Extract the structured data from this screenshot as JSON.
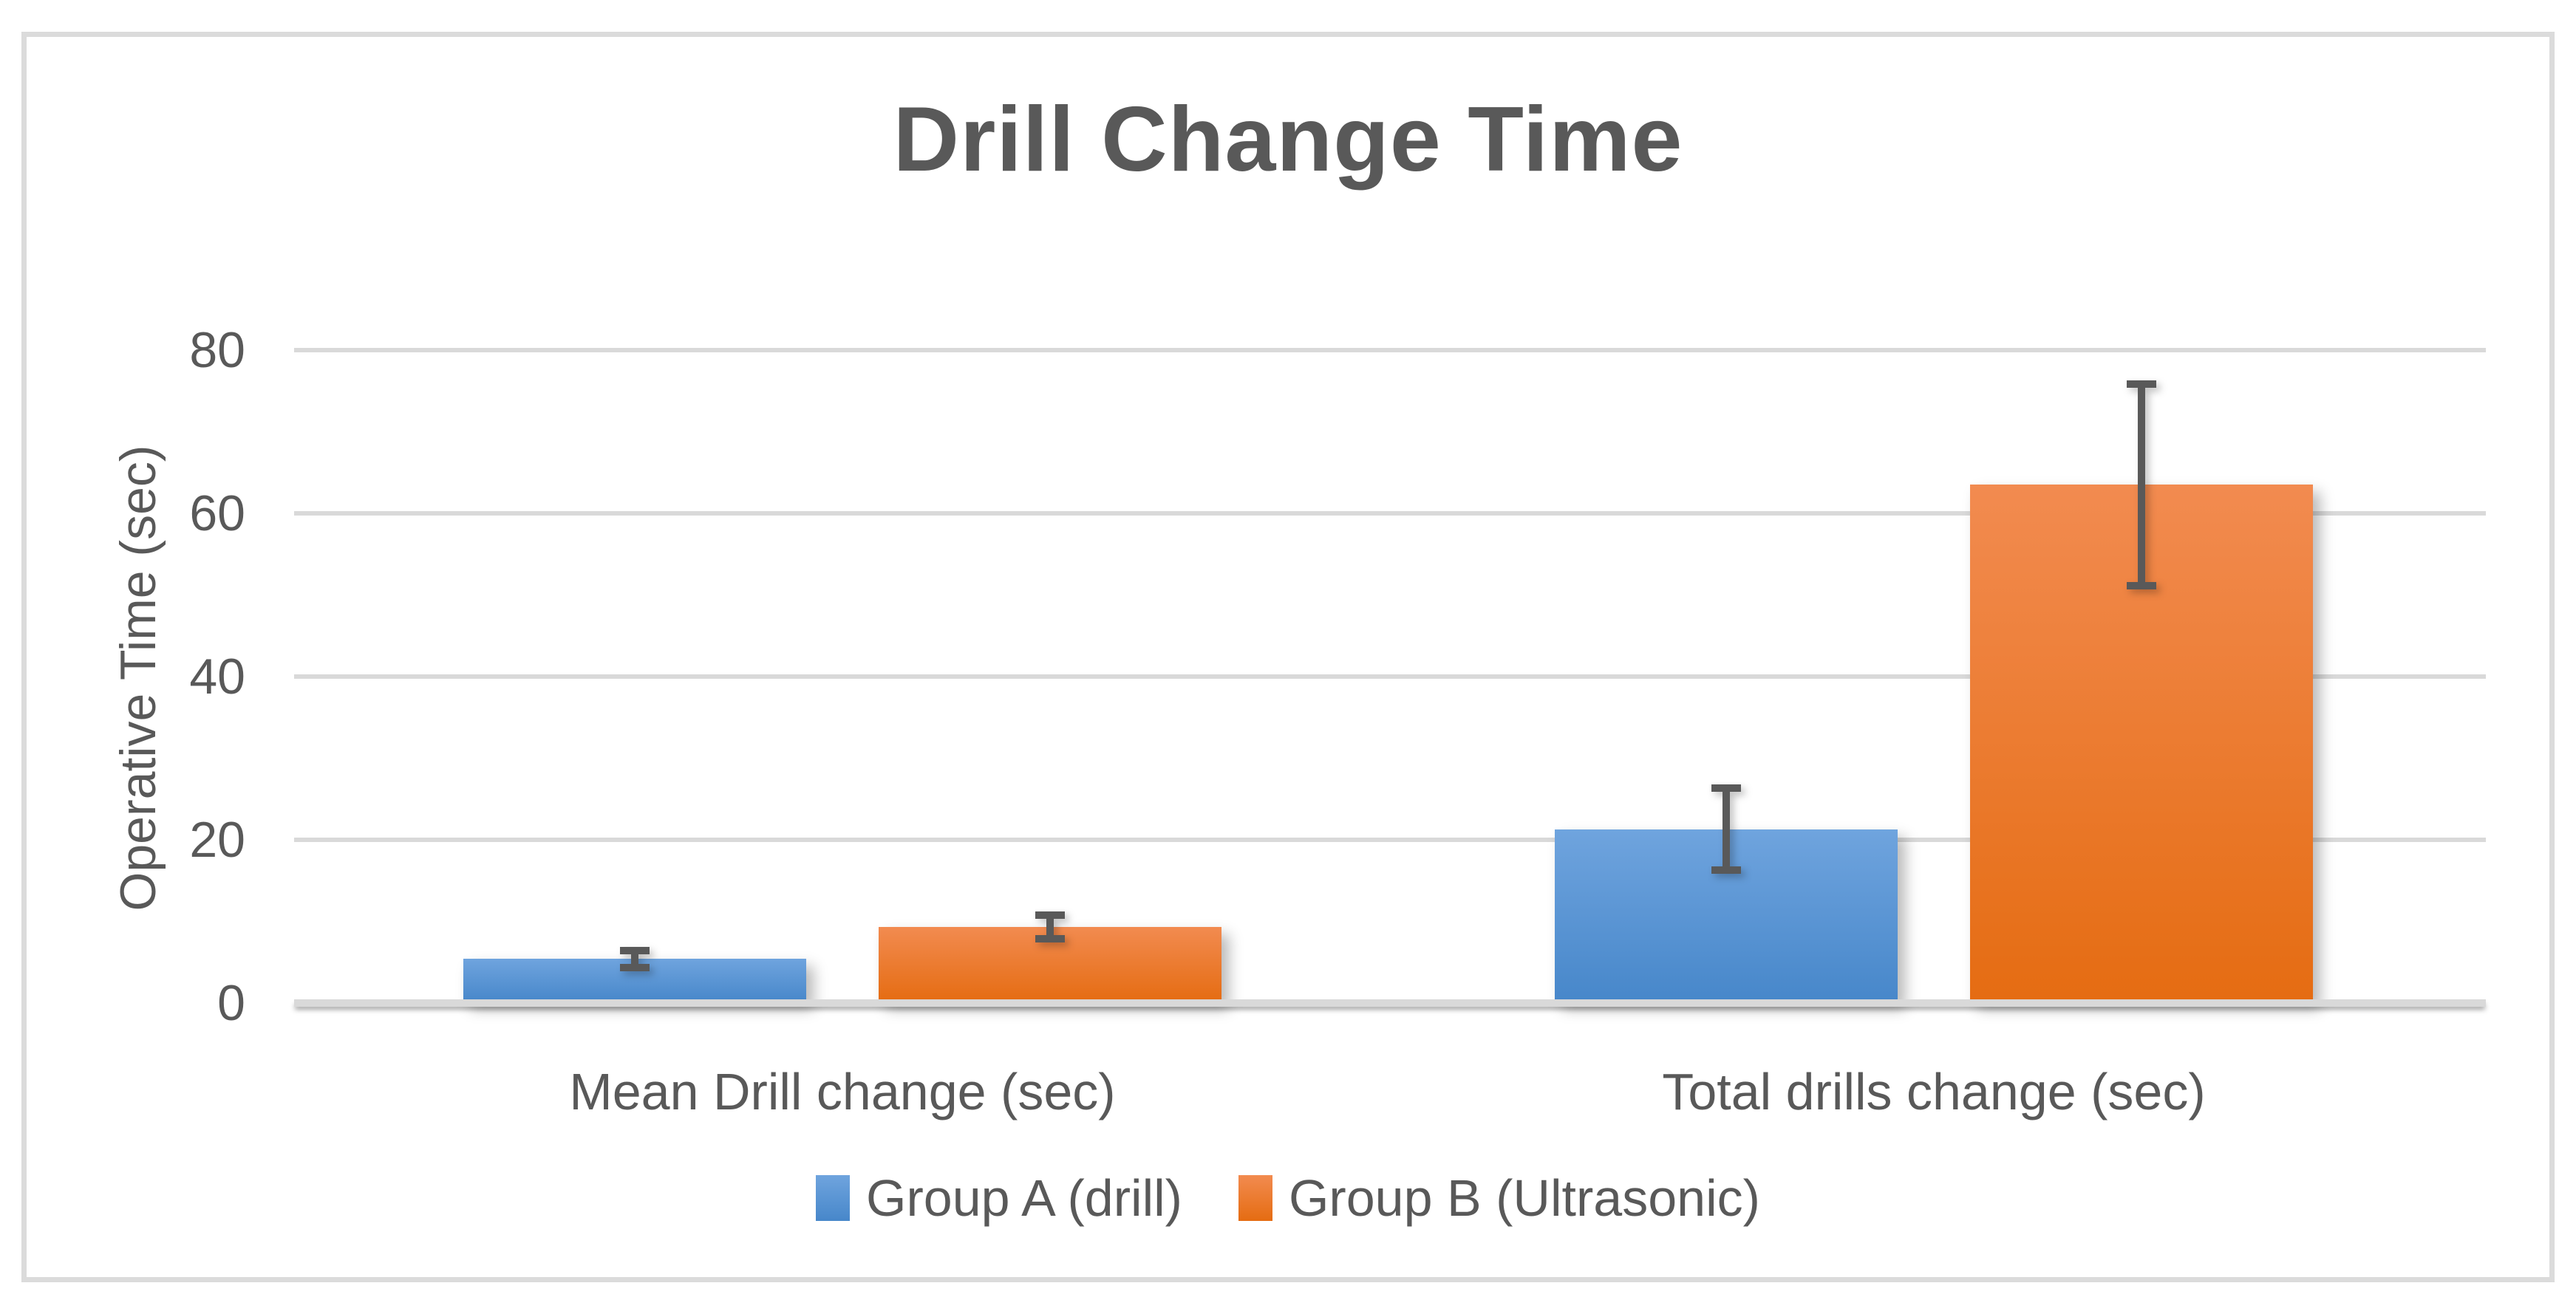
{
  "figure": {
    "background": "#FFFFFF",
    "border_color": "#DBDBDB"
  },
  "chart_data": {
    "type": "bar",
    "title": "Drill Change Time",
    "ylabel": "Operative Time (sec)",
    "xlabel": "",
    "categories": [
      "Mean Drill change (sec)",
      "Total drills change (sec)"
    ],
    "series": [
      {
        "name": "Group A (drill)",
        "values": [
          5.4,
          21.3
        ],
        "error_bars": [
          1.5,
          5.5
        ],
        "color_top": "#6FA4DE",
        "color_bottom": "#4787CA"
      },
      {
        "name": "Group B (Ultrasonic)",
        "values": [
          9.3,
          63.5
        ],
        "error_bars": [
          1.9,
          12.8
        ],
        "color_top": "#F28B50",
        "color_bottom": "#E56C12"
      }
    ],
    "ylim": [
      0,
      80
    ],
    "yticks": [
      0,
      20,
      40,
      60,
      80
    ],
    "grid": true,
    "legend_position": "bottom",
    "colors": {
      "text": "#595959",
      "gridline": "#D9D9D9",
      "error_bar": "#595959"
    }
  }
}
